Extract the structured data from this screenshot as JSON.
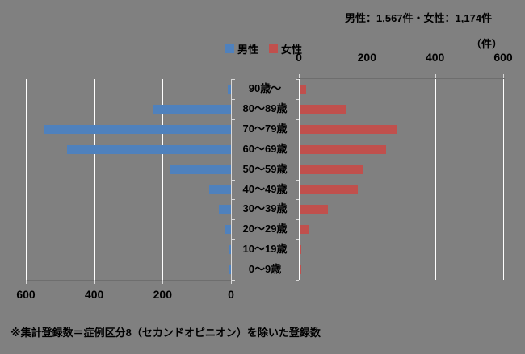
{
  "header": {
    "totals": "男性：1,567件・女性：1,174件",
    "male_total": "1,567",
    "female_total": "1,174"
  },
  "legend": {
    "male": "男性",
    "female": "女性"
  },
  "axes": {
    "unit": "（件）",
    "left_tick_labels": [
      "600",
      "400",
      "200",
      "0"
    ],
    "right_tick_labels": [
      "0",
      "200",
      "400",
      "600"
    ]
  },
  "footnote": "※集計登録数＝症例区分8（セカンドオピニオン）を除いた登録数",
  "colors": {
    "background": "#808080",
    "male": "#4F81BD",
    "female": "#C0504D",
    "gridline": "#FFFFFF",
    "value_axis_line": "#6E6E6E",
    "category_axis_line": "#D9D9D9",
    "tick": "#D9D9D9",
    "text": "#000000"
  },
  "chart_data": {
    "type": "bar",
    "orientation": "horizontal-pyramid",
    "title": "男性：1,567件・女性：1,174件",
    "xlabel": "（件）",
    "ylabel": "",
    "grid": true,
    "legend_position": "top-center",
    "categories": [
      "90歳～",
      "80～89歳",
      "70～79歳",
      "60～69歳",
      "50～59歳",
      "40～49歳",
      "30～39歳",
      "20～29歳",
      "10～19歳",
      "0～9歳"
    ],
    "axis": {
      "max": 600,
      "ticks": [
        0,
        200,
        400,
        600
      ]
    },
    "series": [
      {
        "name": "男性",
        "side": "left",
        "color": "#4F81BD",
        "total": 1567,
        "values": [
          10,
          228,
          548,
          480,
          176,
          64,
          35,
          16,
          4,
          6
        ]
      },
      {
        "name": "女性",
        "side": "right",
        "color": "#C0504D",
        "total": 1174,
        "values": [
          20,
          138,
          288,
          253,
          187,
          170,
          82,
          26,
          5,
          5
        ]
      }
    ]
  }
}
